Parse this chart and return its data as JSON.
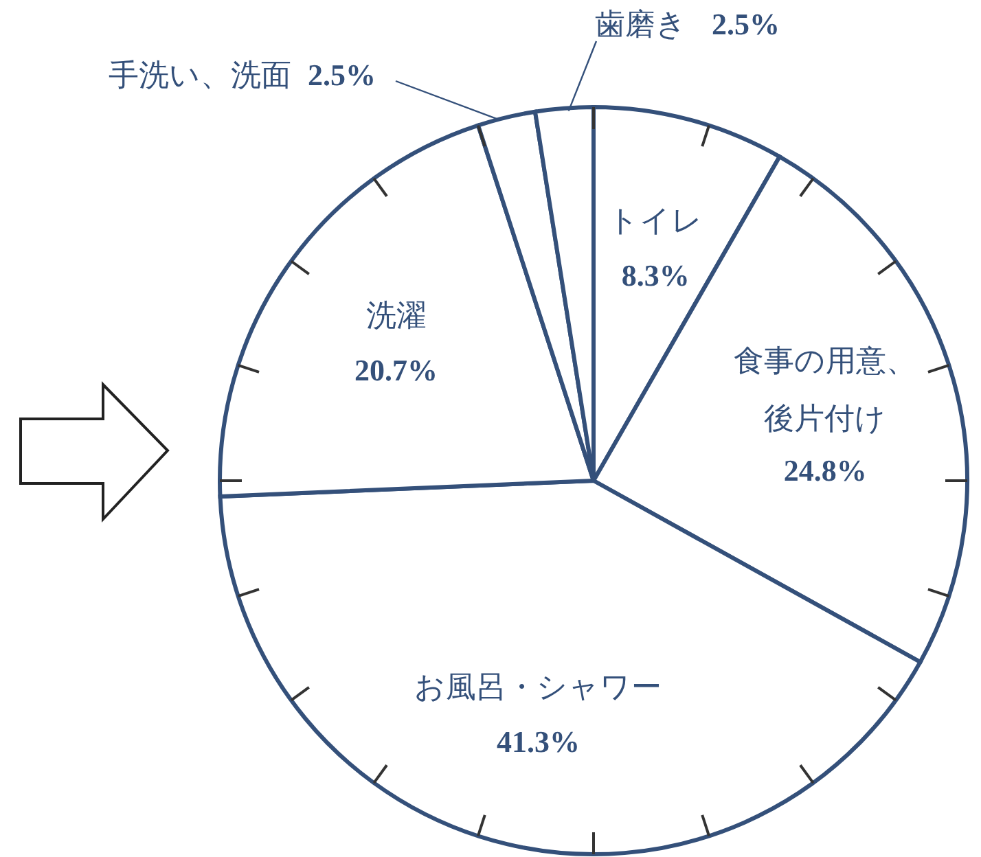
{
  "chart_data": {
    "type": "pie",
    "categories": [
      "トイレ",
      "食事の用意、後片付け",
      "お風呂・シャワー",
      "洗濯",
      "手洗い、洗面",
      "歯磨き"
    ],
    "values": [
      8.3,
      24.8,
      41.3,
      20.7,
      2.5,
      2.5
    ],
    "colors": [
      "#ffffff",
      "#ffffff",
      "#ffffff",
      "#ffffff",
      "#ffffff",
      "#ffffff"
    ],
    "value_labels": [
      "8.3%",
      "24.8%",
      "41.3%",
      "20.7%",
      "2.5%",
      "2.5%"
    ]
  }
}
